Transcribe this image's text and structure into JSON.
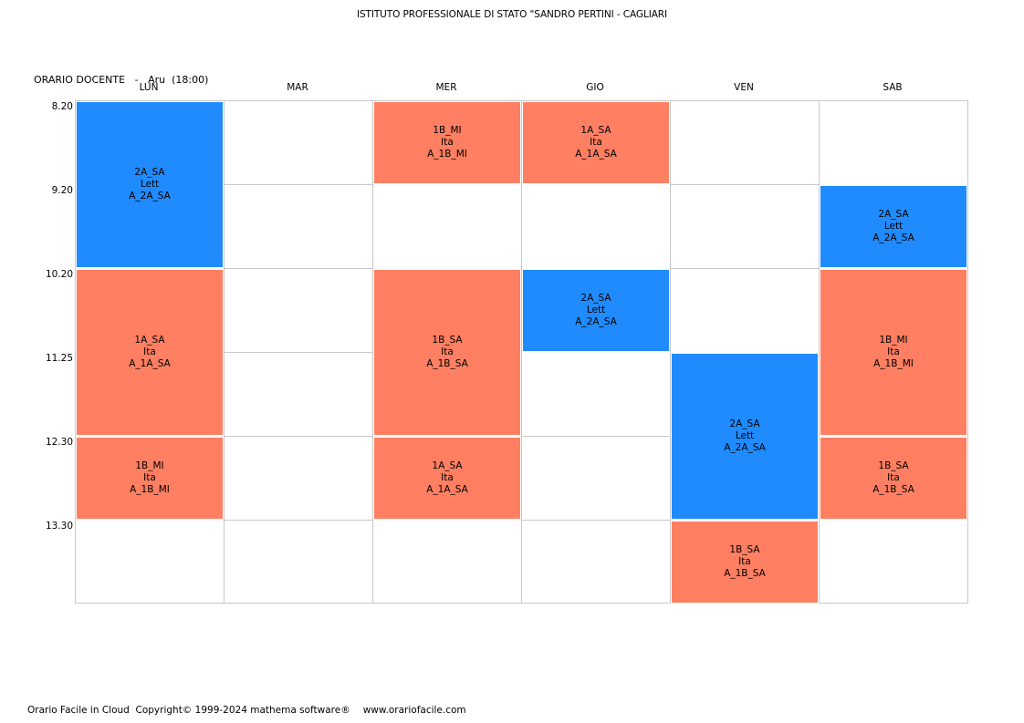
{
  "school_title": "ISTITUTO PROFESSIONALE DI STATO \"SANDRO PERTINI - CAGLIARI",
  "schedule_header": {
    "label": "ORARIO DOCENTE",
    "separator": "-",
    "teacher": "Aru",
    "hours": "(18:00)"
  },
  "days": [
    "LUN",
    "MAR",
    "MER",
    "GIO",
    "VEN",
    "SAB"
  ],
  "times": [
    "8.20",
    "9.20",
    "10.20",
    "11.25",
    "12.30",
    "13.30"
  ],
  "colors": {
    "blue": "#1f8bff",
    "orange": "#ff7f62",
    "grid": "#c8c8c8"
  },
  "lessons": [
    {
      "day": "LUN",
      "start": "8.20",
      "periods": 2,
      "class": "2A_SA",
      "subject": "Lett",
      "code": "A_2A_SA",
      "color": "blue"
    },
    {
      "day": "LUN",
      "start": "10.20",
      "periods": 2,
      "class": "1A_SA",
      "subject": "Ita",
      "code": "A_1A_SA",
      "color": "orange"
    },
    {
      "day": "LUN",
      "start": "12.30",
      "periods": 1,
      "class": "1B_MI",
      "subject": "Ita",
      "code": "A_1B_MI",
      "color": "orange"
    },
    {
      "day": "MER",
      "start": "8.20",
      "periods": 1,
      "class": "1B_MI",
      "subject": "Ita",
      "code": "A_1B_MI",
      "color": "orange"
    },
    {
      "day": "MER",
      "start": "10.20",
      "periods": 2,
      "class": "1B_SA",
      "subject": "Ita",
      "code": "A_1B_SA",
      "color": "orange"
    },
    {
      "day": "MER",
      "start": "12.30",
      "periods": 1,
      "class": "1A_SA",
      "subject": "Ita",
      "code": "A_1A_SA",
      "color": "orange"
    },
    {
      "day": "GIO",
      "start": "8.20",
      "periods": 1,
      "class": "1A_SA",
      "subject": "Ita",
      "code": "A_1A_SA",
      "color": "orange"
    },
    {
      "day": "GIO",
      "start": "10.20",
      "periods": 1,
      "class": "2A_SA",
      "subject": "Lett",
      "code": "A_2A_SA",
      "color": "blue"
    },
    {
      "day": "VEN",
      "start": "11.25",
      "periods": 2,
      "class": "2A_SA",
      "subject": "Lett",
      "code": "A_2A_SA",
      "color": "blue"
    },
    {
      "day": "VEN",
      "start": "13.30",
      "periods": 1,
      "class": "1B_SA",
      "subject": "Ita",
      "code": "A_1B_SA",
      "color": "orange"
    },
    {
      "day": "SAB",
      "start": "9.20",
      "periods": 1,
      "class": "2A_SA",
      "subject": "Lett",
      "code": "A_2A_SA",
      "color": "blue"
    },
    {
      "day": "SAB",
      "start": "10.20",
      "periods": 2,
      "class": "1B_MI",
      "subject": "Ita",
      "code": "A_1B_MI",
      "color": "orange"
    },
    {
      "day": "SAB",
      "start": "12.30",
      "periods": 1,
      "class": "1B_SA",
      "subject": "Ita",
      "code": "A_1B_SA",
      "color": "orange"
    }
  ],
  "footer": {
    "copyright": "Orario Facile in Cloud  Copyright© 1999-2024 mathema software®",
    "url": "www.orariofacile.com"
  }
}
